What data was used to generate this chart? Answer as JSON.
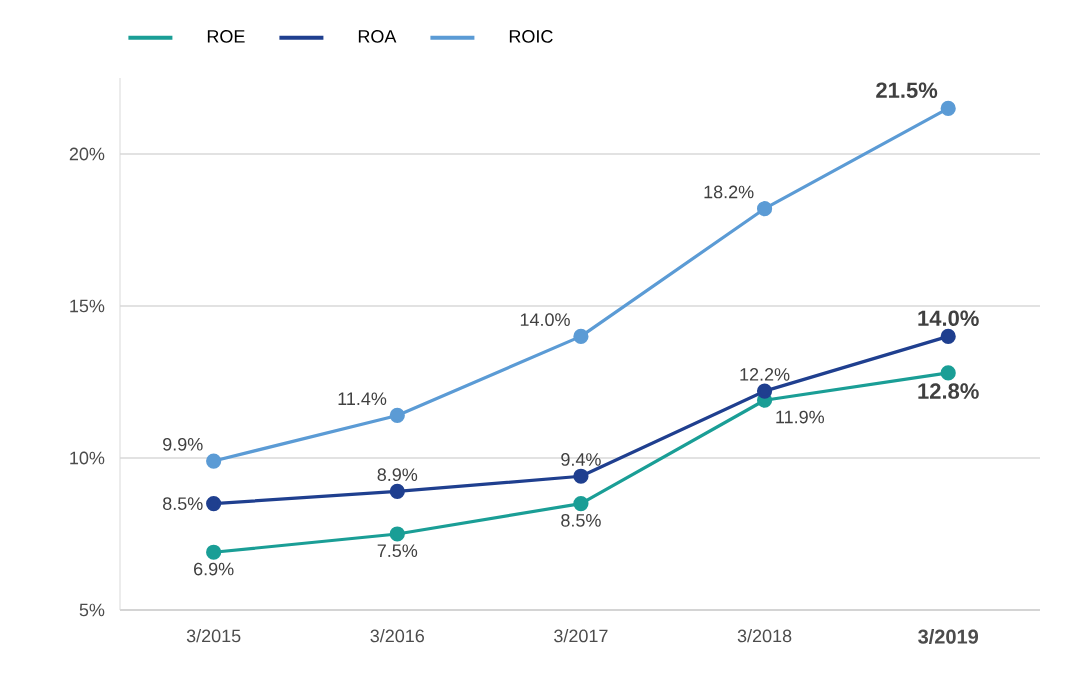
{
  "chart_data": {
    "type": "line",
    "categories": [
      "3/2015",
      "3/2016",
      "3/2017",
      "3/2018",
      "3/2019"
    ],
    "series": [
      {
        "name": "ROE",
        "color": "#1a9e96",
        "values": [
          6.9,
          7.5,
          8.5,
          11.9,
          12.8
        ],
        "value_labels": [
          "6.9%",
          "7.5%",
          "8.5%",
          "11.9%",
          "12.8%"
        ]
      },
      {
        "name": "ROA",
        "color": "#1f3f8f",
        "values": [
          8.5,
          8.9,
          9.4,
          12.2,
          14.0
        ],
        "value_labels": [
          "8.5%",
          "8.9%",
          "9.4%",
          "12.2%",
          "14.0%"
        ]
      },
      {
        "name": "ROIC",
        "color": "#5b9bd5",
        "values": [
          9.9,
          11.4,
          14.0,
          18.2,
          21.5
        ],
        "value_labels": [
          "9.9%",
          "11.4%",
          "14.0%",
          "18.2%",
          "21.5%"
        ]
      }
    ],
    "ylim": [
      5,
      22.5
    ],
    "yticks": [
      {
        "value": 5,
        "label": "5%"
      },
      {
        "value": 10,
        "label": "10%"
      },
      {
        "value": 15,
        "label": "15%"
      },
      {
        "value": 20,
        "label": "20%"
      }
    ],
    "grid": "y",
    "legend": "top left",
    "marker": "circle",
    "line_style": "solid"
  }
}
